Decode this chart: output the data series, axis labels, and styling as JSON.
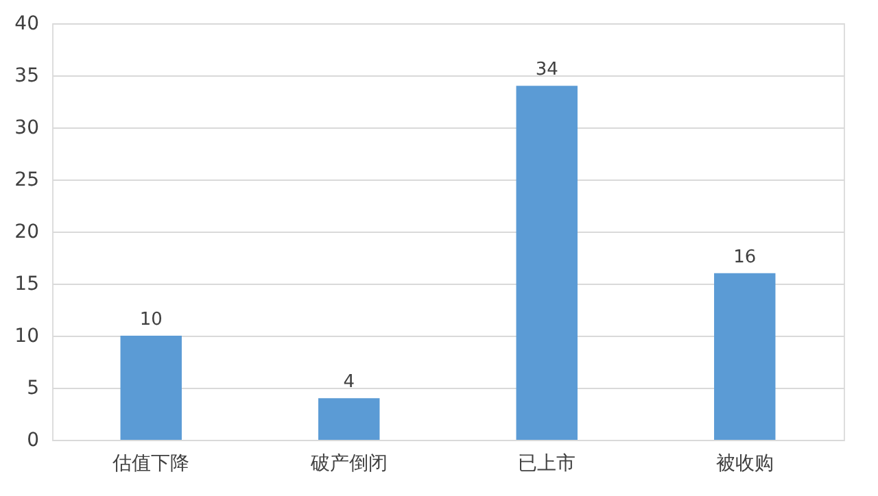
{
  "chart_data": {
    "type": "bar",
    "categories": [
      "估值下降",
      "破产倒闭",
      "已上市",
      "被收购"
    ],
    "values": [
      10,
      4,
      34,
      16
    ],
    "color": "#5b9bd5",
    "ylim": [
      0,
      40
    ],
    "yticks": [
      0,
      5,
      10,
      15,
      20,
      25,
      30,
      35,
      40
    ],
    "grid": "y",
    "data_labels": true
  }
}
